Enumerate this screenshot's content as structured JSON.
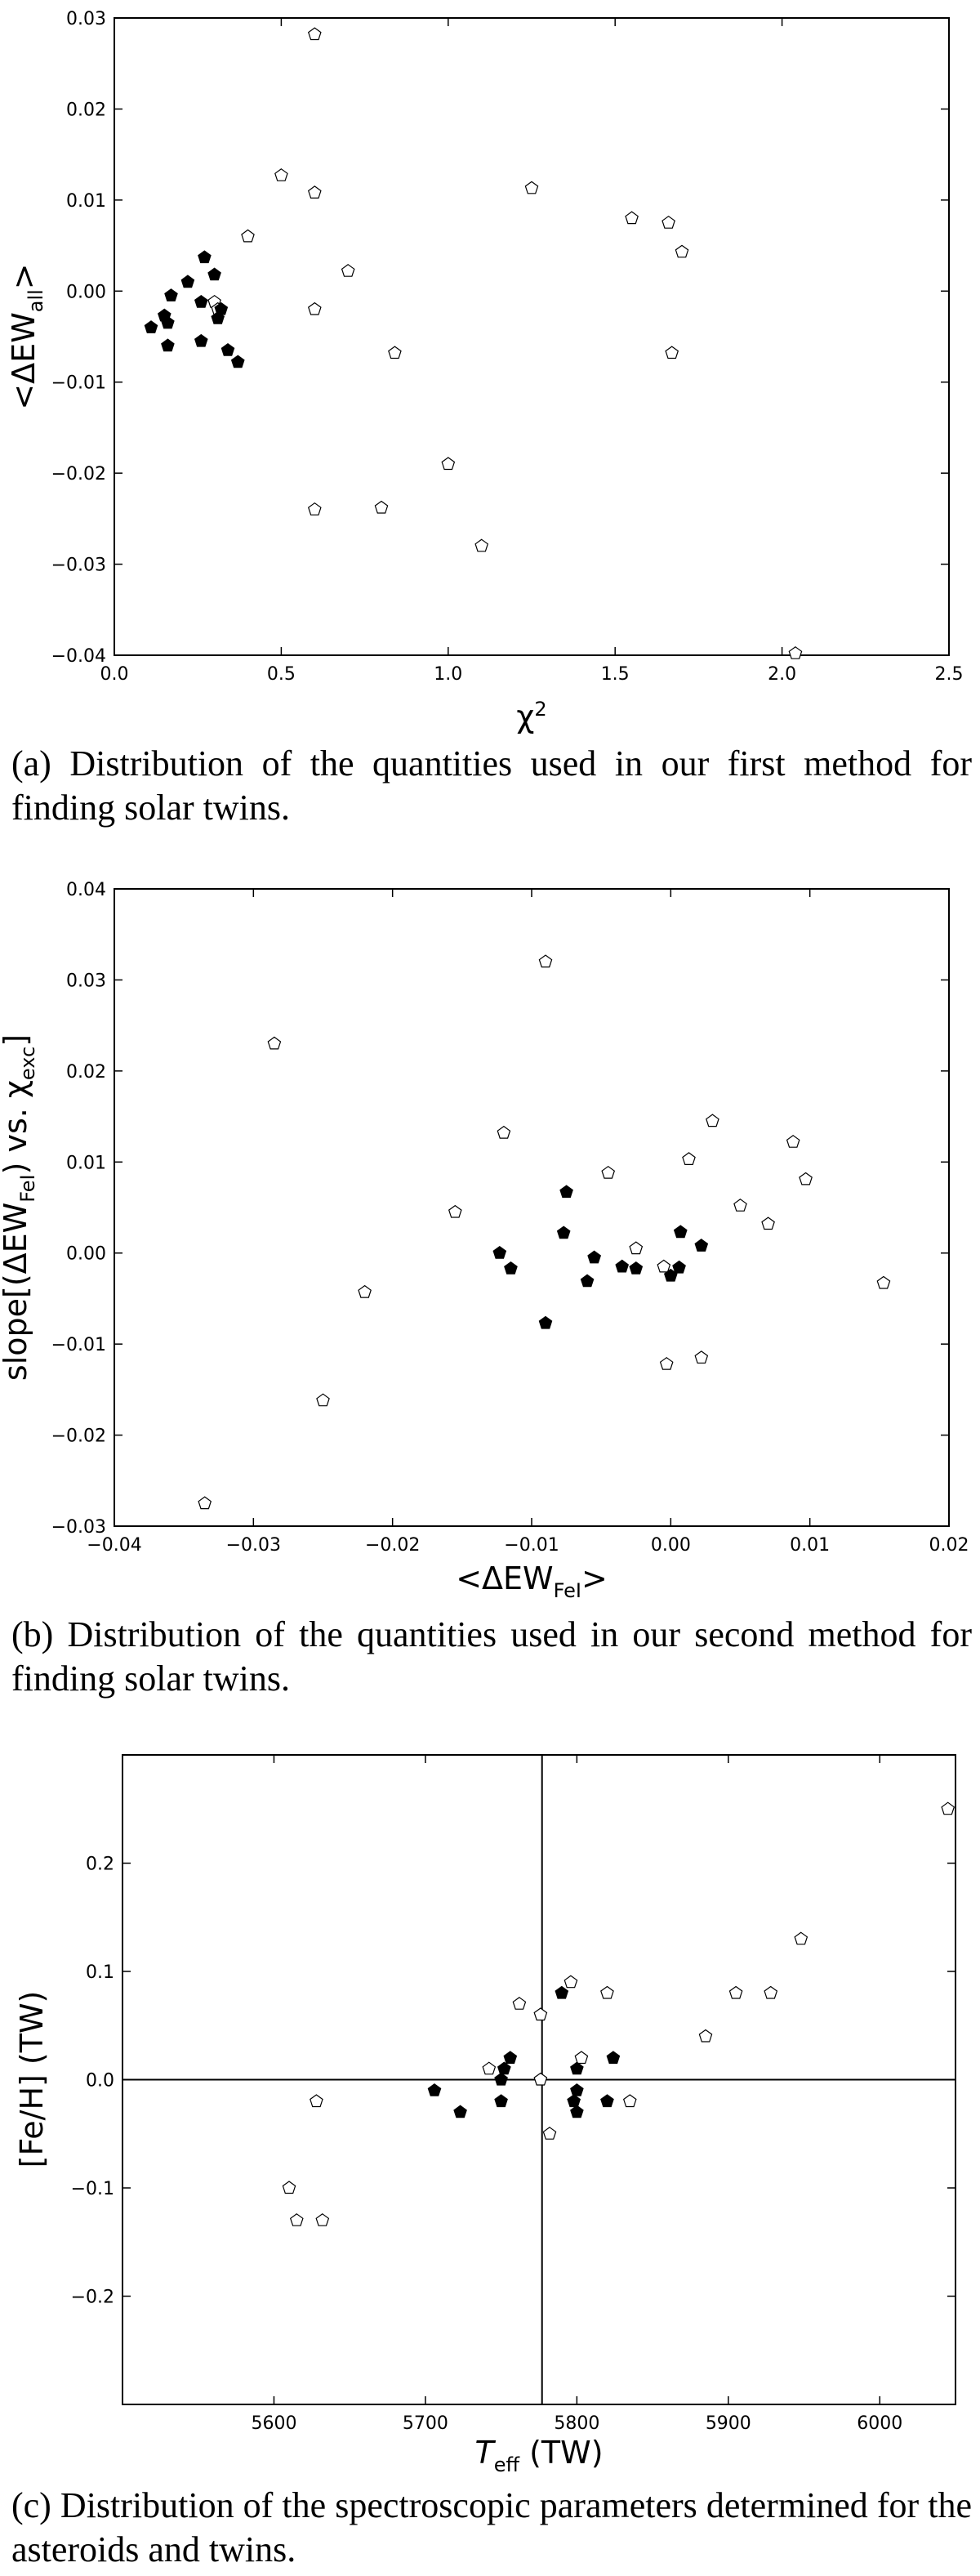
{
  "chart_data": [
    {
      "type": "scatter",
      "xlabel": "χ²",
      "ylabel": "<ΔEW_all>",
      "xlim": [
        0.0,
        2.5
      ],
      "ylim": [
        -0.04,
        0.03
      ],
      "x_ticks": [
        "0.0",
        "0.5",
        "1.0",
        "1.5",
        "2.0",
        "2.5"
      ],
      "y_ticks": [
        "-0.04",
        "-0.03",
        "-0.02",
        "-0.01",
        "0.00",
        "0.01",
        "0.02",
        "0.03"
      ],
      "grid": false,
      "series": [
        {
          "marker": "open-pentagon",
          "points": [
            [
              0.6,
              0.0282
            ],
            [
              0.5,
              0.0127
            ],
            [
              0.6,
              0.0108
            ],
            [
              0.4,
              0.006
            ],
            [
              0.3,
              -0.0012
            ],
            [
              0.31,
              -0.002
            ],
            [
              0.6,
              -0.002
            ],
            [
              0.7,
              0.0022
            ],
            [
              0.84,
              -0.0068
            ],
            [
              1.0,
              -0.019
            ],
            [
              0.6,
              -0.024
            ],
            [
              0.8,
              -0.0238
            ],
            [
              1.1,
              -0.028
            ],
            [
              1.25,
              0.0113
            ],
            [
              1.55,
              0.008
            ],
            [
              1.66,
              0.0075
            ],
            [
              1.7,
              0.0043
            ],
            [
              1.67,
              -0.0068
            ],
            [
              2.04,
              -0.0398
            ]
          ]
        },
        {
          "marker": "filled-pentagon",
          "points": [
            [
              0.27,
              0.0037
            ],
            [
              0.3,
              0.0018
            ],
            [
              0.22,
              0.001
            ],
            [
              0.17,
              -0.0005
            ],
            [
              0.26,
              -0.0012
            ],
            [
              0.32,
              -0.002
            ],
            [
              0.31,
              -0.003
            ],
            [
              0.15,
              -0.0027
            ],
            [
              0.16,
              -0.0035
            ],
            [
              0.11,
              -0.004
            ],
            [
              0.26,
              -0.0055
            ],
            [
              0.16,
              -0.006
            ],
            [
              0.34,
              -0.0065
            ],
            [
              0.37,
              -0.0078
            ]
          ]
        }
      ]
    },
    {
      "type": "scatter",
      "xlabel": "<ΔEW_FeI>",
      "ylabel": "slope[(ΔEW_FeI) vs. χ_exc]",
      "xlim": [
        -0.04,
        0.02
      ],
      "ylim": [
        -0.03,
        0.04
      ],
      "x_ticks": [
        "-0.04",
        "-0.03",
        "-0.02",
        "-0.01",
        "0.00",
        "0.01",
        "0.02"
      ],
      "y_ticks": [
        "-0.03",
        "-0.02",
        "-0.01",
        "0.00",
        "0.01",
        "0.02",
        "0.03",
        "0.04"
      ],
      "grid": false,
      "series": [
        {
          "marker": "open-pentagon",
          "points": [
            [
              -0.009,
              0.032
            ],
            [
              -0.0285,
              0.023
            ],
            [
              -0.0335,
              -0.0275
            ],
            [
              -0.025,
              -0.0162
            ],
            [
              -0.022,
              -0.0043
            ],
            [
              -0.0155,
              0.0045
            ],
            [
              -0.012,
              0.0132
            ],
            [
              -0.0045,
              0.0088
            ],
            [
              0.003,
              0.0145
            ],
            [
              0.0013,
              0.0103
            ],
            [
              0.005,
              0.0052
            ],
            [
              0.0088,
              0.0122
            ],
            [
              0.0097,
              0.0081
            ],
            [
              0.007,
              0.0032
            ],
            [
              0.0153,
              -0.0033
            ],
            [
              0.0022,
              -0.0115
            ],
            [
              -0.0003,
              -0.0122
            ],
            [
              -0.0025,
              0.0005
            ],
            [
              -0.0005,
              -0.0015
            ]
          ]
        },
        {
          "marker": "filled-pentagon",
          "points": [
            [
              -0.0075,
              0.0067
            ],
            [
              -0.0077,
              0.0022
            ],
            [
              0.0007,
              0.0023
            ],
            [
              -0.0123,
              0.0
            ],
            [
              -0.0055,
              -0.0005
            ],
            [
              -0.0115,
              -0.0017
            ],
            [
              -0.0035,
              -0.0015
            ],
            [
              -0.0025,
              -0.0017
            ],
            [
              -0.006,
              -0.0031
            ],
            [
              0.0,
              -0.0025
            ],
            [
              0.0006,
              -0.0016
            ],
            [
              0.0022,
              0.0008
            ],
            [
              -0.009,
              -0.0077
            ]
          ]
        }
      ]
    },
    {
      "type": "scatter",
      "xlabel": "T_eff (TW)",
      "ylabel": "[Fe/H] (TW)",
      "xlim": [
        5500,
        6050
      ],
      "ylim": [
        -0.3,
        0.3
      ],
      "x_ticks": [
        "5600",
        "5700",
        "5800",
        "5900",
        "6000"
      ],
      "y_ticks": [
        "-0.2",
        "-0.1",
        "0.0",
        "0.1",
        "0.2"
      ],
      "grid": false,
      "reference_lines": {
        "x": 5777,
        "y": 0.0
      },
      "series": [
        {
          "marker": "open-pentagon",
          "points": [
            [
              6045,
              0.25
            ],
            [
              5948,
              0.13
            ],
            [
              5905,
              0.08
            ],
            [
              5928,
              0.08
            ],
            [
              5885,
              0.04
            ],
            [
              5820,
              0.08
            ],
            [
              5796,
              0.09
            ],
            [
              5762,
              0.07
            ],
            [
              5776,
              0.06
            ],
            [
              5803,
              0.02
            ],
            [
              5742,
              0.01
            ],
            [
              5776,
              0.0
            ],
            [
              5835,
              -0.02
            ],
            [
              5782,
              -0.05
            ],
            [
              5628,
              -0.02
            ],
            [
              5610,
              -0.1
            ],
            [
              5615,
              -0.13
            ],
            [
              5632,
              -0.13
            ]
          ]
        },
        {
          "marker": "filled-pentagon",
          "points": [
            [
              5790,
              0.08
            ],
            [
              5756,
              0.02
            ],
            [
              5824,
              0.02
            ],
            [
              5752,
              0.01
            ],
            [
              5800,
              0.01
            ],
            [
              5750,
              0.0
            ],
            [
              5706,
              -0.01
            ],
            [
              5800,
              -0.01
            ],
            [
              5723,
              -0.03
            ],
            [
              5750,
              -0.02
            ],
            [
              5798,
              -0.02
            ],
            [
              5820,
              -0.02
            ],
            [
              5800,
              -0.03
            ]
          ]
        }
      ]
    }
  ],
  "captions": {
    "a": "(a) Distribution of the quantities used in our first method for finding solar twins.",
    "b": "(b) Distribution of the quantities used in our second method for finding solar twins.",
    "c": "(c) Distribution of the spectroscopic parameters determined for the asteroids and twins."
  }
}
